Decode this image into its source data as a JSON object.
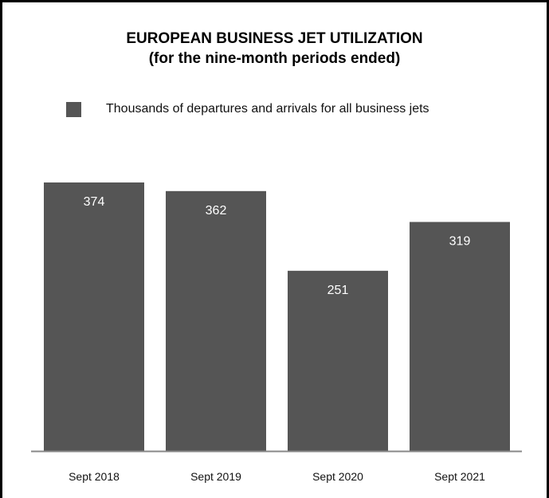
{
  "colors": {
    "bar": "#555555",
    "axis": "#888888",
    "frame": "#000000"
  },
  "chart_data": {
    "type": "bar",
    "title": "EUROPEAN BUSINESS JET UTILIZATION",
    "subtitle": "(for the nine-month periods ended)",
    "legend": "top-left",
    "grid": false,
    "categories": [
      "Sept 2018",
      "Sept 2019",
      "Sept 2020",
      "Sept 2021"
    ],
    "series": [
      {
        "name": "Thousands of departures and arrivals for all business jets",
        "values": [
          374,
          362,
          251,
          319
        ]
      }
    ],
    "data_labels": [
      "374",
      "362",
      "251",
      "319"
    ],
    "ylim": [
      0,
      374
    ]
  }
}
